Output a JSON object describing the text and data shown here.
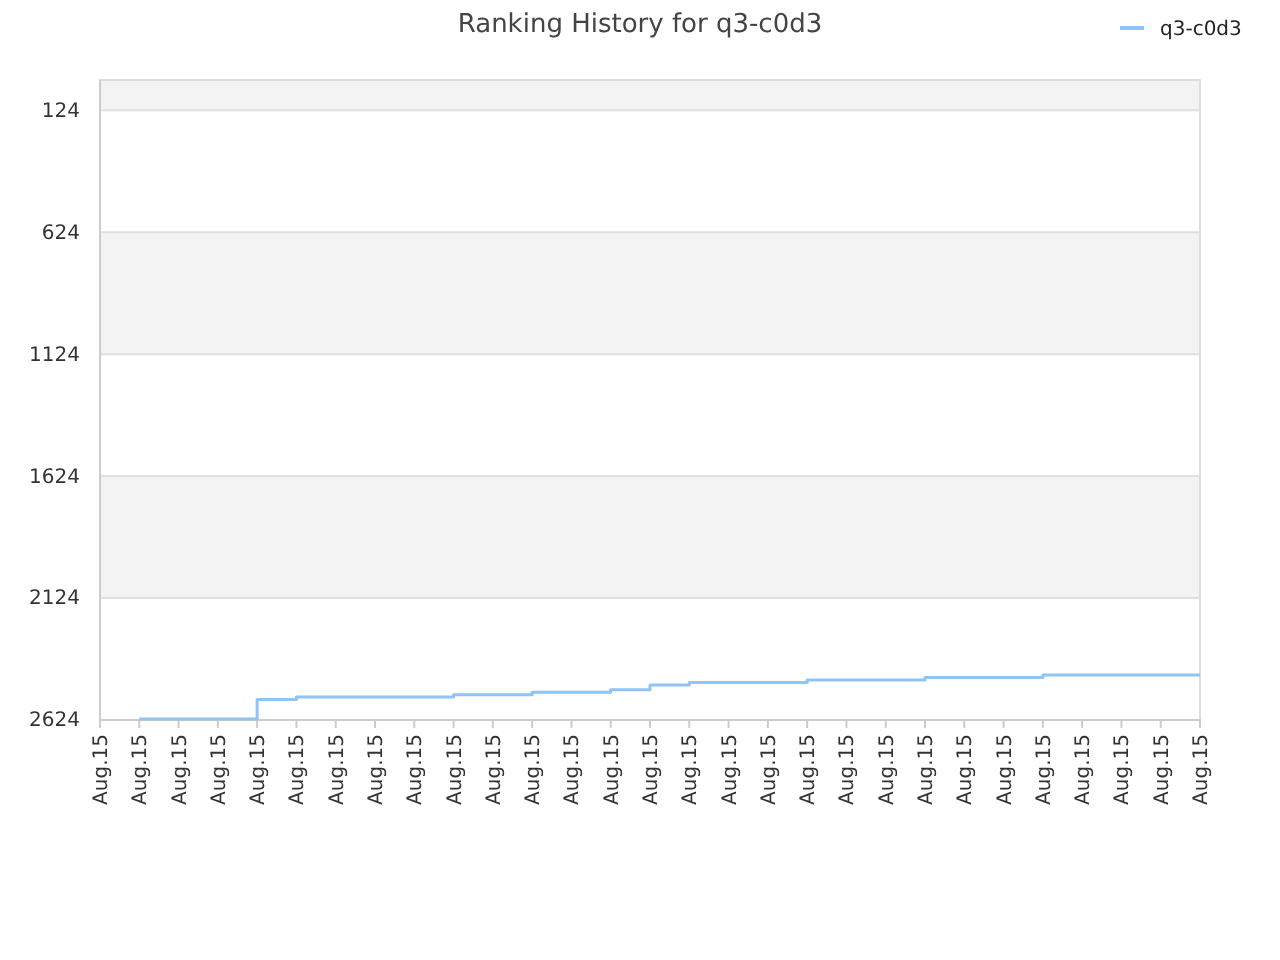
{
  "chart_data": {
    "type": "step",
    "title": "Ranking History for q3-c0d3",
    "categories": [
      "Aug.15",
      "Aug.15",
      "Aug.15",
      "Aug.15",
      "Aug.15",
      "Aug.15",
      "Aug.15",
      "Aug.15",
      "Aug.15",
      "Aug.15",
      "Aug.15",
      "Aug.15",
      "Aug.15",
      "Aug.15",
      "Aug.15",
      "Aug.15",
      "Aug.15",
      "Aug.15",
      "Aug.15",
      "Aug.15",
      "Aug.15",
      "Aug.15",
      "Aug.15",
      "Aug.15",
      "Aug.15",
      "Aug.15",
      "Aug.15",
      "Aug.15",
      "Aug.15"
    ],
    "series": [
      {
        "name": "q3-c0d3",
        "color": "#90c4f4",
        "values": [
          null,
          2620,
          2620,
          2620,
          2540,
          2530,
          2530,
          2530,
          2530,
          2520,
          2520,
          2510,
          2510,
          2500,
          2480,
          2470,
          2470,
          2470,
          2460,
          2460,
          2460,
          2450,
          2450,
          2450,
          2440,
          2440,
          2440,
          2440,
          2440
        ]
      }
    ],
    "ylim": [
      2624,
      0
    ],
    "yticks": [
      124,
      624,
      1124,
      1624,
      2124,
      2624
    ],
    "grid": "y",
    "legend": "top right",
    "marker": "none",
    "line_style": "solid"
  }
}
